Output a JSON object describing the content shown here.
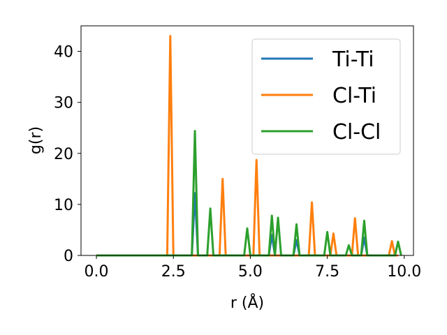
{
  "chart_data": {
    "type": "line",
    "xlabel": "r (Å)",
    "ylabel": "g(r)",
    "xlim": [
      -0.5,
      10.3
    ],
    "ylim": [
      0,
      45
    ],
    "xticks": [
      0.0,
      2.5,
      5.0,
      7.5,
      10.0
    ],
    "xtick_labels": [
      "0.0",
      "2.5",
      "5.0",
      "7.5",
      "10.0"
    ],
    "yticks": [
      0,
      10,
      20,
      30,
      40
    ],
    "ytick_labels": [
      "0",
      "10",
      "20",
      "30",
      "40"
    ],
    "grid": false,
    "legend_position": "top-right",
    "series": [
      {
        "name": "Ti-Ti",
        "color": "#1f77b4",
        "x": [
          0.0,
          3.1,
          3.2,
          3.3,
          5.6,
          5.7,
          5.8,
          6.4,
          6.5,
          6.6,
          8.6,
          8.7,
          8.8,
          9.8
        ],
        "y": [
          0,
          0,
          12.2,
          0,
          0,
          4.0,
          0,
          0,
          3.0,
          0,
          0,
          3.5,
          0,
          0
        ]
      },
      {
        "name": "Cl-Ti",
        "color": "#ff7f0e",
        "x": [
          0.0,
          2.3,
          2.4,
          2.5,
          4.0,
          4.1,
          4.2,
          5.1,
          5.2,
          5.3,
          6.9,
          7.0,
          7.1,
          7.6,
          7.7,
          7.8,
          8.3,
          8.4,
          8.5,
          9.5,
          9.6,
          9.7,
          9.8
        ],
        "y": [
          0,
          0,
          43.0,
          0,
          0,
          15.0,
          0,
          0,
          18.7,
          0,
          0,
          10.4,
          0,
          0,
          4.3,
          0,
          0,
          7.3,
          0,
          0,
          2.8,
          0,
          0
        ]
      },
      {
        "name": "Cl-Cl",
        "color": "#2ca02c",
        "x": [
          0.0,
          3.1,
          3.2,
          3.3,
          3.6,
          3.7,
          3.8,
          4.8,
          4.9,
          5.0,
          5.6,
          5.7,
          5.8,
          5.9,
          6.0,
          6.4,
          6.5,
          6.6,
          7.4,
          7.5,
          7.6,
          8.1,
          8.2,
          8.3,
          8.6,
          8.7,
          8.8,
          9.7,
          9.8,
          9.9
        ],
        "y": [
          0,
          0,
          24.4,
          0,
          0,
          9.2,
          0,
          0,
          5.3,
          0,
          0,
          7.8,
          0,
          7.4,
          0,
          0,
          6.1,
          0,
          0,
          4.6,
          0,
          0,
          2.0,
          0,
          0,
          6.8,
          0,
          0,
          2.7,
          0
        ]
      }
    ]
  }
}
